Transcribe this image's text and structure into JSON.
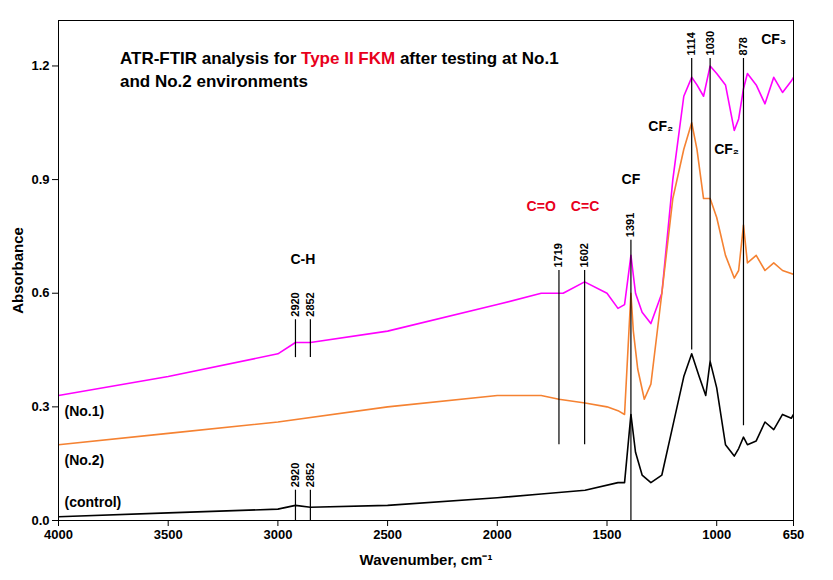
{
  "chart_data": {
    "type": "line",
    "title": "ATR-FTIR analysis for Type II FKM after testing at No.1 and No.2 environments",
    "title_highlight": {
      "text": "Type II FKM",
      "color": "#e8001c"
    },
    "x_label": "Wavenumber, cm⁻¹",
    "y_label": "Absorbance",
    "xlim": [
      4000,
      650
    ],
    "xticks": [
      4000,
      3500,
      3000,
      2500,
      2000,
      1500,
      1000,
      650
    ],
    "ylim": [
      0,
      1.32
    ],
    "yticks": [
      {
        "value": 0,
        "label": "0.0"
      },
      0.3,
      0.6,
      0.9,
      1.2
    ],
    "grid": false,
    "series": [
      {
        "name": "(No.1)",
        "color": "#ff00ff",
        "x": [
          4000,
          3500,
          3000,
          2920,
          2852,
          2500,
          2000,
          1800,
          1700,
          1602,
          1500,
          1450,
          1420,
          1391,
          1370,
          1340,
          1300,
          1250,
          1200,
          1150,
          1114,
          1090,
          1060,
          1030,
          1000,
          960,
          920,
          900,
          878,
          860,
          820,
          780,
          740,
          700,
          660,
          650
        ],
        "values": [
          0.33,
          0.38,
          0.44,
          0.47,
          0.47,
          0.5,
          0.57,
          0.6,
          0.6,
          0.63,
          0.6,
          0.56,
          0.57,
          0.7,
          0.6,
          0.55,
          0.52,
          0.6,
          0.9,
          1.12,
          1.17,
          1.15,
          1.12,
          1.2,
          1.18,
          1.15,
          1.03,
          1.06,
          1.14,
          1.18,
          1.15,
          1.1,
          1.17,
          1.13,
          1.16,
          1.17
        ]
      },
      {
        "name": "(No.2)",
        "color": "#f58232",
        "x": [
          4000,
          3500,
          3000,
          2500,
          2000,
          1800,
          1719,
          1600,
          1500,
          1450,
          1420,
          1391,
          1380,
          1360,
          1330,
          1300,
          1250,
          1200,
          1150,
          1114,
          1090,
          1060,
          1030,
          1000,
          960,
          920,
          900,
          878,
          860,
          820,
          780,
          740,
          700,
          650
        ],
        "values": [
          0.2,
          0.23,
          0.26,
          0.3,
          0.33,
          0.33,
          0.32,
          0.31,
          0.3,
          0.29,
          0.28,
          0.6,
          0.5,
          0.4,
          0.32,
          0.36,
          0.6,
          0.85,
          0.98,
          1.05,
          0.98,
          0.85,
          0.85,
          0.8,
          0.7,
          0.64,
          0.66,
          0.78,
          0.68,
          0.7,
          0.66,
          0.68,
          0.66,
          0.65
        ]
      },
      {
        "name": "(control)",
        "color": "#000000",
        "x": [
          4000,
          3500,
          3000,
          2920,
          2852,
          2500,
          2000,
          1800,
          1600,
          1450,
          1420,
          1391,
          1370,
          1340,
          1300,
          1250,
          1200,
          1150,
          1114,
          1080,
          1050,
          1030,
          1000,
          960,
          920,
          900,
          878,
          860,
          820,
          780,
          740,
          700,
          660,
          650
        ],
        "values": [
          0.01,
          0.02,
          0.03,
          0.04,
          0.035,
          0.04,
          0.06,
          0.07,
          0.08,
          0.1,
          0.1,
          0.28,
          0.18,
          0.12,
          0.1,
          0.12,
          0.25,
          0.38,
          0.44,
          0.38,
          0.33,
          0.42,
          0.35,
          0.2,
          0.17,
          0.19,
          0.22,
          0.2,
          0.21,
          0.26,
          0.24,
          0.28,
          0.27,
          0.28
        ]
      }
    ],
    "peaks": [
      {
        "x": 2920,
        "y": [
          0.43,
          0.53
        ]
      },
      {
        "x": 2852,
        "y": [
          0.43,
          0.53
        ]
      },
      {
        "x": 2920,
        "y": [
          0.0,
          0.08
        ]
      },
      {
        "x": 2852,
        "y": [
          0.0,
          0.08
        ]
      },
      {
        "x": 1719,
        "y": [
          0.2,
          0.66
        ]
      },
      {
        "x": 1602,
        "y": [
          0.2,
          0.66
        ]
      },
      {
        "x": 1391,
        "y": [
          0.0,
          0.74
        ]
      },
      {
        "x": 1114,
        "y": [
          0.45,
          1.22
        ]
      },
      {
        "x": 1030,
        "y": [
          0.42,
          1.22
        ]
      },
      {
        "x": 878,
        "y": [
          0.25,
          1.22
        ]
      }
    ],
    "annotations": [
      {
        "text": "C-H",
        "x": 2886,
        "y": 0.69,
        "color": "#000000",
        "boxed": true
      },
      {
        "text": "C=O",
        "x": 1800,
        "y": 0.83,
        "color": "#e8001c"
      },
      {
        "text": "C=C",
        "x": 1600,
        "y": 0.83,
        "color": "#e8001c"
      },
      {
        "text": "CF",
        "x": 1391,
        "y": 0.9,
        "color": "#000000"
      },
      {
        "text": "CF₂",
        "x": 1255,
        "y": 1.04,
        "color": "#000000"
      },
      {
        "text": "CF₂",
        "x": 955,
        "y": 0.98,
        "color": "#000000"
      },
      {
        "text": "CF₃",
        "x": 740,
        "y": 1.27,
        "color": "#000000"
      }
    ]
  }
}
